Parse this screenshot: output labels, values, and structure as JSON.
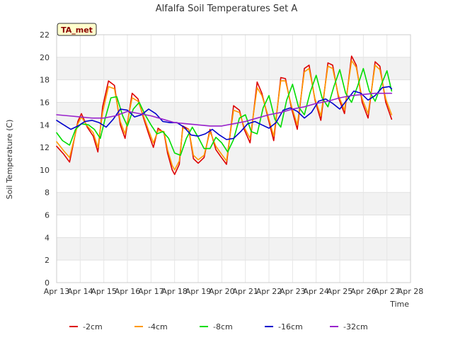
{
  "chart_data": {
    "type": "line",
    "title": "Alfalfa Soil Temperatures Set A",
    "xlabel": "Time",
    "ylabel": "Soil Temperature (C)",
    "badge": "TA_met",
    "ylim": [
      0,
      22
    ],
    "yticks": [
      0,
      2,
      4,
      6,
      8,
      10,
      12,
      14,
      16,
      18,
      20,
      22
    ],
    "xlim": [
      13,
      28
    ],
    "xticks": [
      13,
      14,
      15,
      16,
      17,
      18,
      19,
      20,
      21,
      22,
      23,
      24,
      25,
      26,
      27,
      28
    ],
    "xtick_labels": [
      "Apr 13",
      "Apr 14",
      "Apr 15",
      "Apr 16",
      "Apr 17",
      "Apr 18",
      "Apr 19",
      "Apr 20",
      "Apr 21",
      "Apr 22",
      "Apr 23",
      "Apr 24",
      "Apr 25",
      "Apr 26",
      "Apr 27",
      "Apr 28"
    ],
    "grid": true,
    "legend_position": "bottom",
    "series": [
      {
        "name": "-2cm",
        "color": "#dd0000",
        "x": [
          13.0,
          13.3,
          13.55,
          13.9,
          14.05,
          14.3,
          14.55,
          14.75,
          14.95,
          15.2,
          15.45,
          15.7,
          15.9,
          16.2,
          16.45,
          16.7,
          16.9,
          17.1,
          17.3,
          17.55,
          17.7,
          17.9,
          18.0,
          18.2,
          18.35,
          18.6,
          18.8,
          19.0,
          19.25,
          19.5,
          19.75,
          19.95,
          20.2,
          20.5,
          20.75,
          20.95,
          21.2,
          21.5,
          21.7,
          21.95,
          22.2,
          22.5,
          22.7,
          22.95,
          23.2,
          23.5,
          23.7,
          23.95,
          24.2,
          24.5,
          24.7,
          24.95,
          25.2,
          25.5,
          25.7,
          25.95,
          26.2,
          26.5,
          26.7,
          26.95,
          27.2
        ],
        "y": [
          12.1,
          11.4,
          10.7,
          14.3,
          15.0,
          13.8,
          13.0,
          11.6,
          15.6,
          17.9,
          17.5,
          14.0,
          12.8,
          16.8,
          16.3,
          14.5,
          13.2,
          12.0,
          13.7,
          13.3,
          11.5,
          10.0,
          9.6,
          10.5,
          13.9,
          13.6,
          11.0,
          10.6,
          11.1,
          13.6,
          11.8,
          11.2,
          10.5,
          15.7,
          15.3,
          13.6,
          12.4,
          17.8,
          16.8,
          14.7,
          12.6,
          18.2,
          18.1,
          15.5,
          13.6,
          19.0,
          19.3,
          16.2,
          14.4,
          19.5,
          19.3,
          16.4,
          15.0,
          20.1,
          19.3,
          16.0,
          14.6,
          19.6,
          19.2,
          16.0,
          14.5
        ]
      },
      {
        "name": "-4cm",
        "color": "#ff9900",
        "x": [
          13.0,
          13.3,
          13.55,
          13.9,
          14.05,
          14.3,
          14.55,
          14.75,
          14.95,
          15.2,
          15.45,
          15.7,
          15.9,
          16.2,
          16.45,
          16.7,
          16.9,
          17.1,
          17.3,
          17.55,
          17.7,
          17.9,
          18.0,
          18.2,
          18.35,
          18.6,
          18.8,
          19.0,
          19.25,
          19.5,
          19.75,
          19.95,
          20.2,
          20.5,
          20.75,
          20.95,
          21.2,
          21.5,
          21.7,
          21.95,
          22.2,
          22.5,
          22.7,
          22.95,
          23.2,
          23.5,
          23.7,
          23.95,
          24.2,
          24.5,
          24.7,
          24.95,
          25.2,
          25.5,
          25.7,
          25.95,
          26.2,
          26.5,
          26.7,
          26.95,
          27.2
        ],
        "y": [
          12.5,
          11.7,
          11.1,
          14.1,
          14.7,
          13.9,
          13.3,
          12.0,
          15.1,
          17.4,
          17.2,
          14.3,
          13.2,
          16.4,
          16.1,
          14.7,
          13.5,
          12.4,
          13.5,
          13.4,
          11.8,
          10.4,
          10.0,
          10.8,
          13.7,
          13.6,
          11.3,
          10.9,
          11.3,
          13.4,
          12.1,
          11.5,
          10.8,
          15.3,
          15.1,
          13.8,
          12.8,
          17.3,
          16.6,
          14.9,
          13.0,
          17.9,
          17.9,
          15.7,
          14.0,
          18.7,
          19.0,
          16.3,
          14.8,
          19.2,
          19.0,
          16.6,
          15.3,
          19.7,
          19.1,
          16.3,
          15.0,
          19.3,
          18.9,
          16.3,
          14.9
        ]
      },
      {
        "name": "-8cm",
        "color": "#00dd00",
        "x": [
          13.0,
          13.25,
          13.55,
          13.8,
          14.05,
          14.35,
          14.6,
          14.85,
          15.05,
          15.3,
          15.55,
          15.8,
          16.0,
          16.25,
          16.5,
          16.75,
          17.0,
          17.25,
          17.5,
          17.75,
          18.0,
          18.25,
          18.5,
          18.75,
          19.0,
          19.25,
          19.5,
          19.75,
          20.0,
          20.25,
          20.5,
          20.75,
          21.0,
          21.25,
          21.5,
          21.75,
          22.0,
          22.25,
          22.5,
          22.75,
          23.0,
          23.25,
          23.5,
          23.75,
          24.0,
          24.25,
          24.5,
          24.75,
          25.0,
          25.25,
          25.5,
          25.75,
          26.0,
          26.25,
          26.5,
          26.75,
          27.0,
          27.2
        ],
        "y": [
          13.3,
          12.6,
          12.2,
          13.6,
          14.1,
          14.0,
          13.6,
          12.8,
          14.5,
          16.4,
          16.5,
          14.8,
          13.9,
          15.4,
          16.0,
          14.9,
          14.0,
          13.2,
          13.4,
          12.8,
          11.5,
          11.3,
          12.8,
          13.8,
          12.9,
          11.9,
          11.9,
          12.9,
          12.4,
          11.6,
          12.7,
          14.6,
          14.9,
          13.4,
          13.2,
          15.5,
          16.6,
          14.5,
          13.8,
          16.2,
          17.6,
          15.6,
          14.9,
          16.9,
          18.4,
          16.4,
          15.6,
          17.4,
          18.9,
          16.8,
          16.0,
          17.4,
          19.0,
          17.0,
          16.1,
          17.5,
          18.8,
          17.0
        ]
      },
      {
        "name": "-16cm",
        "color": "#0000cc",
        "x": [
          13.0,
          13.3,
          13.6,
          13.9,
          14.2,
          14.5,
          14.8,
          15.1,
          15.4,
          15.7,
          16.0,
          16.3,
          16.6,
          16.9,
          17.2,
          17.5,
          17.8,
          18.1,
          18.4,
          18.7,
          19.0,
          19.3,
          19.6,
          19.9,
          20.2,
          20.5,
          20.8,
          21.1,
          21.4,
          21.7,
          22.0,
          22.3,
          22.6,
          22.9,
          23.2,
          23.5,
          23.8,
          24.1,
          24.4,
          24.7,
          25.0,
          25.3,
          25.6,
          25.9,
          26.2,
          26.5,
          26.8,
          27.1,
          27.2
        ],
        "y": [
          14.4,
          14.0,
          13.6,
          13.9,
          14.3,
          14.4,
          14.2,
          13.8,
          14.5,
          15.4,
          15.3,
          14.7,
          14.9,
          15.4,
          15.0,
          14.3,
          14.2,
          14.2,
          13.8,
          13.1,
          13.0,
          13.2,
          13.6,
          13.1,
          12.7,
          12.8,
          13.4,
          14.1,
          14.3,
          14.0,
          13.7,
          14.2,
          15.3,
          15.5,
          15.2,
          14.6,
          15.1,
          16.1,
          16.3,
          15.9,
          15.4,
          16.2,
          17.0,
          16.8,
          16.2,
          16.6,
          17.3,
          17.4,
          17.2
        ]
      },
      {
        "name": "-32cm",
        "color": "#9922cc",
        "x": [
          13.0,
          13.5,
          14.0,
          14.5,
          15.0,
          15.5,
          16.0,
          16.5,
          17.0,
          17.5,
          18.0,
          18.5,
          19.0,
          19.5,
          20.0,
          20.5,
          21.0,
          21.5,
          22.0,
          22.5,
          23.0,
          23.5,
          24.0,
          24.5,
          25.0,
          25.5,
          26.0,
          26.5,
          27.0,
          27.2
        ],
        "y": [
          14.9,
          14.8,
          14.7,
          14.6,
          14.6,
          14.8,
          15.2,
          15.0,
          14.8,
          14.5,
          14.2,
          14.1,
          14.0,
          13.9,
          13.9,
          14.1,
          14.3,
          14.6,
          14.9,
          15.1,
          15.4,
          15.6,
          15.9,
          16.1,
          16.4,
          16.6,
          16.7,
          16.8,
          16.8,
          16.8
        ]
      }
    ]
  }
}
